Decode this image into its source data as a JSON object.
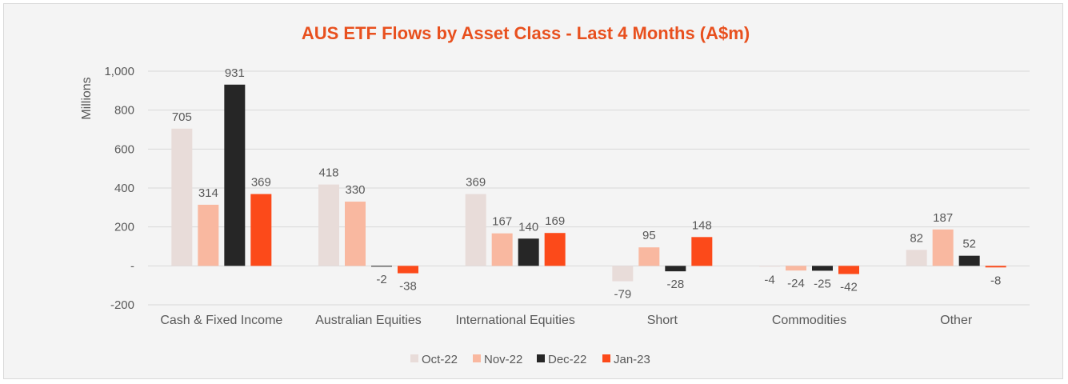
{
  "chart_data": {
    "type": "bar",
    "title": "AUS ETF Flows by Asset Class - Last 4 Months (A$m)",
    "ylabel": "Millions",
    "ylim": [
      -200,
      1000
    ],
    "yticks": [
      -200,
      0,
      200,
      400,
      600,
      800,
      1000
    ],
    "ytick_labels": [
      "-200",
      "-",
      "200",
      "400",
      "600",
      "800",
      "1,000"
    ],
    "grid": true,
    "legend_position": "bottom",
    "categories": [
      "Cash & Fixed Income",
      "Australian Equities",
      "International Equities",
      "Short",
      "Commodities",
      "Other"
    ],
    "series": [
      {
        "name": "Oct-22",
        "color": "#e8dcd9",
        "values": [
          705,
          418,
          369,
          -79,
          -4,
          82
        ]
      },
      {
        "name": "Nov-22",
        "color": "#f9b8a0",
        "values": [
          314,
          330,
          167,
          95,
          -24,
          187
        ]
      },
      {
        "name": "Dec-22",
        "color": "#262626",
        "values": [
          931,
          -2,
          140,
          -28,
          -25,
          52
        ]
      },
      {
        "name": "Jan-23",
        "color": "#fc4a1a",
        "values": [
          369,
          -38,
          169,
          148,
          -42,
          -8
        ]
      }
    ],
    "title_color": "#e8501e"
  }
}
